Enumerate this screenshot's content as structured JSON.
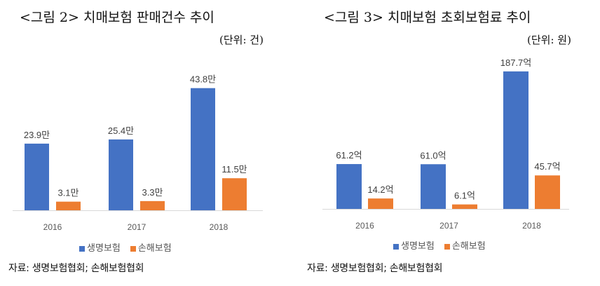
{
  "colors": {
    "life": "#4472C4",
    "nonlife": "#ED7D31",
    "axis": "#D9D9D9",
    "label": "#404040"
  },
  "chart_data": [
    {
      "type": "bar",
      "title": "<그림 2> 치매보험 판매건수 추이",
      "unit": "(단위: 건)",
      "categories": [
        "2016",
        "2017",
        "2018"
      ],
      "series": [
        {
          "name": "생명보험",
          "values": [
            23.9,
            25.4,
            43.8
          ],
          "labels": [
            "23.9만",
            "25.4만",
            "43.8만"
          ]
        },
        {
          "name": "손해보험",
          "values": [
            3.1,
            3.3,
            11.5
          ],
          "labels": [
            "3.1만",
            "3.3만",
            "11.5만"
          ]
        }
      ],
      "ylim": [
        0,
        48
      ],
      "legend": "bottom",
      "source": "자료: 생명보험협회; 손해보험협회"
    },
    {
      "type": "bar",
      "title": "<그림 3> 치매보험 초회보험료 추이",
      "unit": "(단위: 원)",
      "categories": [
        "2016",
        "2017",
        "2018"
      ],
      "series": [
        {
          "name": "생명보험",
          "values": [
            61.2,
            61.0,
            187.7
          ],
          "labels": [
            "61.2억",
            "61.0억",
            "187.7억"
          ]
        },
        {
          "name": "손해보험",
          "values": [
            14.2,
            6.1,
            45.7
          ],
          "labels": [
            "14.2억",
            "6.1억",
            "45.7억"
          ]
        }
      ],
      "ylim": [
        0,
        200
      ],
      "legend": "bottom",
      "source": "자료: 생명보험협회; 손해보험협회"
    }
  ]
}
